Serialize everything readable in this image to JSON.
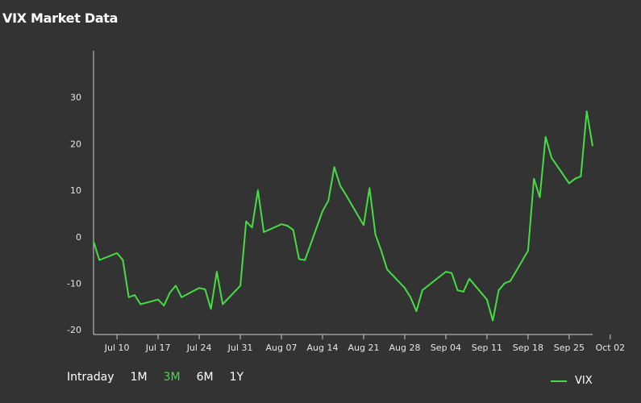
{
  "title": "VIX Market Data",
  "accent_color": "#44dd44",
  "range_selector": {
    "options": [
      "Intraday",
      "1M",
      "3M",
      "6M",
      "1Y"
    ],
    "selected": "3M"
  },
  "chart_data": {
    "type": "line",
    "title": "VIX Market Data",
    "xlabel": "",
    "ylabel": "",
    "ylim": [
      -21,
      40
    ],
    "y_ticks": [
      -20,
      -10,
      0,
      10,
      20,
      30
    ],
    "x_ticks": [
      "Jul 10",
      "Jul 17",
      "Jul 24",
      "Jul 31",
      "Aug 07",
      "Aug 14",
      "Aug 21",
      "Aug 28",
      "Sep 04",
      "Sep 11",
      "Sep 18",
      "Sep 25",
      "Oct 02"
    ],
    "grid": false,
    "legend_position": "bottom-right",
    "series": [
      {
        "name": "VIX",
        "color": "#44dd44",
        "points": [
          [
            "Jul 06",
            -1.0
          ],
          [
            "Jul 07",
            -5.0
          ],
          [
            "Jul 10",
            -3.5
          ],
          [
            "Jul 11",
            -5.0
          ],
          [
            "Jul 12",
            -13.0
          ],
          [
            "Jul 13",
            -12.5
          ],
          [
            "Jul 14",
            -14.5
          ],
          [
            "Jul 17",
            -13.5
          ],
          [
            "Jul 18",
            -14.8
          ],
          [
            "Jul 19",
            -12.0
          ],
          [
            "Jul 20",
            -10.5
          ],
          [
            "Jul 21",
            -13.0
          ],
          [
            "Jul 24",
            -11.0
          ],
          [
            "Jul 25",
            -11.3
          ],
          [
            "Jul 26",
            -15.5
          ],
          [
            "Jul 27",
            -7.5
          ],
          [
            "Jul 28",
            -14.5
          ],
          [
            "Jul 31",
            -10.5
          ],
          [
            "Aug 01",
            3.3
          ],
          [
            "Aug 02",
            2.0
          ],
          [
            "Aug 03",
            10.0
          ],
          [
            "Aug 04",
            1.0
          ],
          [
            "Aug 07",
            2.7
          ],
          [
            "Aug 08",
            2.4
          ],
          [
            "Aug 09",
            1.5
          ],
          [
            "Aug 10",
            -4.8
          ],
          [
            "Aug 11",
            -5.0
          ],
          [
            "Aug 14",
            5.5
          ],
          [
            "Aug 15",
            7.8
          ],
          [
            "Aug 16",
            15.0
          ],
          [
            "Aug 17",
            11.0
          ],
          [
            "Aug 18",
            9.0
          ],
          [
            "Aug 21",
            2.5
          ],
          [
            "Aug 22",
            10.5
          ],
          [
            "Aug 23",
            0.5
          ],
          [
            "Aug 24",
            -3.0
          ],
          [
            "Aug 25",
            -7.0
          ],
          [
            "Aug 28",
            -11.0
          ],
          [
            "Aug 29",
            -13.0
          ],
          [
            "Aug 30",
            -16.0
          ],
          [
            "Aug 31",
            -11.5
          ],
          [
            "Sep 01",
            -10.5
          ],
          [
            "Sep 04",
            -7.5
          ],
          [
            "Sep 05",
            -7.8
          ],
          [
            "Sep 06",
            -11.5
          ],
          [
            "Sep 07",
            -11.8
          ],
          [
            "Sep 08",
            -9.0
          ],
          [
            "Sep 11",
            -13.5
          ],
          [
            "Sep 12",
            -18.0
          ],
          [
            "Sep 13",
            -11.5
          ],
          [
            "Sep 14",
            -10.0
          ],
          [
            "Sep 15",
            -9.5
          ],
          [
            "Sep 18",
            -3.0
          ],
          [
            "Sep 19",
            12.5
          ],
          [
            "Sep 20",
            8.5
          ],
          [
            "Sep 21",
            21.5
          ],
          [
            "Sep 22",
            17.0
          ],
          [
            "Sep 25",
            11.5
          ],
          [
            "Sep 26",
            12.5
          ],
          [
            "Sep 27",
            13.0
          ],
          [
            "Sep 28",
            27.0
          ],
          [
            "Sep 29",
            19.5
          ]
        ]
      }
    ]
  }
}
